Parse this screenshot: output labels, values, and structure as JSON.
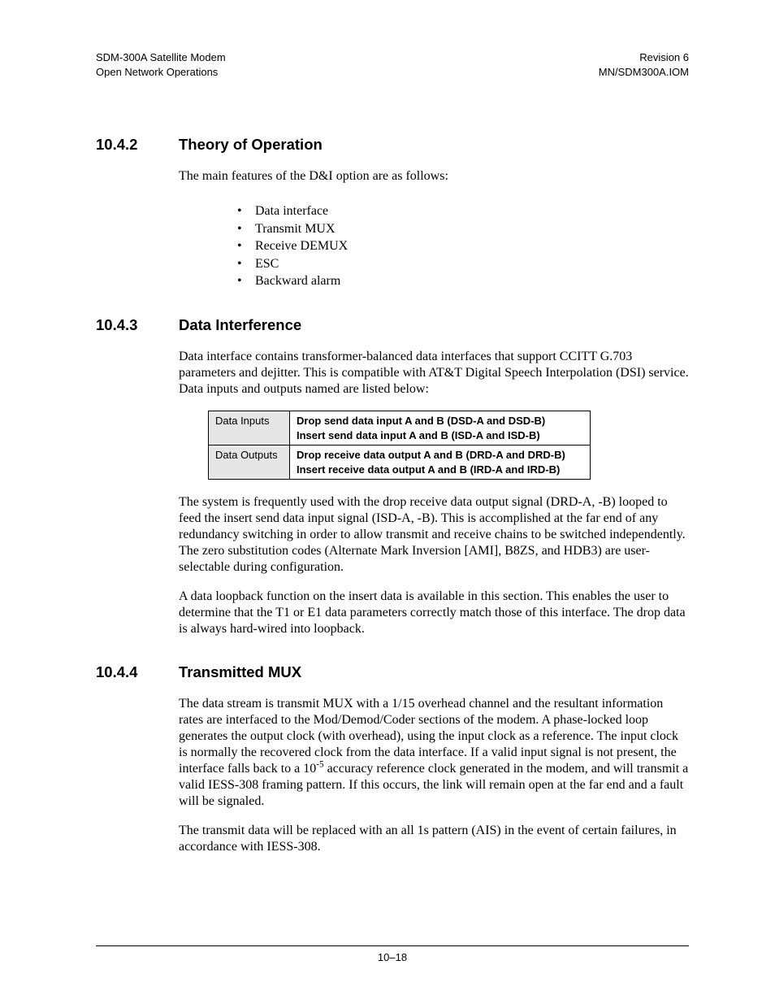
{
  "header": {
    "left_line1": "SDM-300A Satellite Modem",
    "left_line2": "Open Network Operations",
    "right_line1": "Revision 6",
    "right_line2": "MN/SDM300A.IOM"
  },
  "sections": {
    "s1": {
      "number": "10.4.2",
      "title": "Theory of Operation",
      "intro": "The main features of the D&I option are as follows:",
      "bullets": [
        "Data interface",
        "Transmit MUX",
        "Receive DEMUX",
        "ESC",
        "Backward alarm"
      ]
    },
    "s2": {
      "number": "10.4.3",
      "title": "Data Interference",
      "p1": "Data interface contains transformer-balanced data interfaces that support CCITT G.703 parameters and dejitter. This is compatible with AT&T Digital Speech Interpolation (DSI) service. Data inputs and outputs named are listed below:",
      "table": {
        "rows": [
          {
            "label": "Data Inputs",
            "l1": "Drop send data input A and B (DSD-A and DSD-B)",
            "l2": "Insert send data input A and B (ISD-A and ISD-B)"
          },
          {
            "label": "Data Outputs",
            "l1": "Drop receive data output A and B (DRD-A and DRD-B)",
            "l2": "Insert receive data output A and B (IRD-A and IRD-B)"
          }
        ]
      },
      "p2": "The system is frequently used with the drop receive data output signal (DRD-A, -B) looped to feed the insert send data input signal (ISD-A, -B). This is accomplished at the far end of any redundancy switching in order to allow transmit and receive chains to be switched independently. The zero substitution codes (Alternate Mark Inversion [AMI], B8ZS, and HDB3) are user-selectable during configuration.",
      "p3": "A data loopback function on the insert data is available in this section. This enables the user to determine that the T1 or E1 data parameters correctly match those of this interface. The drop data is always hard-wired into loopback."
    },
    "s3": {
      "number": "10.4.4",
      "title": "Transmitted MUX",
      "p1_a": "The data stream is transmit MUX with a 1/15 overhead channel and the resultant information rates are interfaced to the Mod/Demod/Coder sections of the modem. A phase-locked loop generates the output clock (with overhead), using the input clock as a reference. The input clock is normally the recovered clock from the data interface. If a valid input signal is not present, the interface falls back to a 10",
      "p1_sup": "-5",
      "p1_b": " accuracy reference clock generated in the modem, and will transmit a valid IESS-308 framing pattern. If this occurs, the link will remain open at the far end and a fault will be signaled.",
      "p2": "The transmit data will be replaced with an all 1s pattern (AIS) in the event of certain failures, in accordance with IESS-308."
    }
  },
  "footer": {
    "page": "10–18"
  }
}
